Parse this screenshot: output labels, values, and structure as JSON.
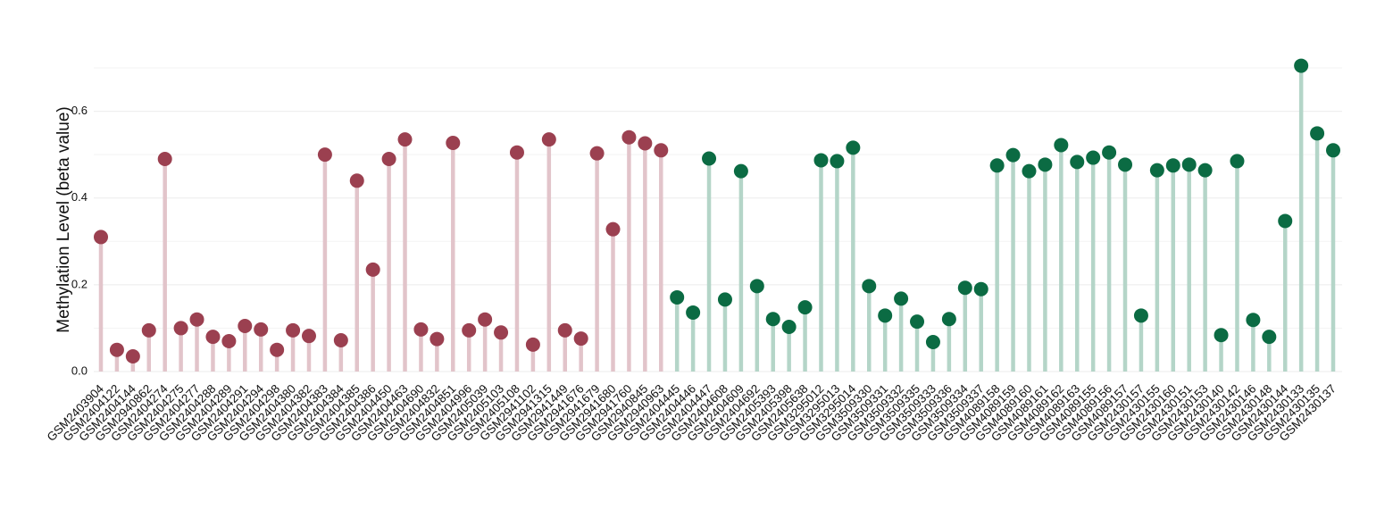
{
  "chart_data": {
    "type": "lollipop",
    "y_label": "Methylation Level (beta value)",
    "ylim": [
      0,
      0.7
    ],
    "yticks": [
      {
        "value": 0,
        "label": "0.0"
      },
      {
        "value": 0.2,
        "label": "0.2"
      },
      {
        "value": 0.4,
        "label": "0.4"
      },
      {
        "value": 0.6,
        "label": "0.6"
      }
    ],
    "minor_grid": [
      0.1,
      0.3,
      0.5,
      0.7
    ],
    "grid": true,
    "series": [
      {
        "color": "#9b4050",
        "stem_color": "#e2c4ca",
        "categories": [
          "GSM2403904",
          "GSM2404122",
          "GSM2404144",
          "GSM2940862",
          "GSM2404274",
          "GSM2404275",
          "GSM2404277",
          "GSM2404288",
          "GSM2404289",
          "GSM2404291",
          "GSM2404294",
          "GSM2404298",
          "GSM2404380",
          "GSM2404382",
          "GSM2404383",
          "GSM2404384",
          "GSM2404385",
          "GSM2404386",
          "GSM2404450",
          "GSM2404463",
          "GSM2404690",
          "GSM2404832",
          "GSM2404851",
          "GSM2404996",
          "GSM2405039",
          "GSM2405103",
          "GSM2405108",
          "GSM2941102",
          "GSM2941315",
          "GSM2941449",
          "GSM2941676",
          "GSM2941679",
          "GSM2941680",
          "GSM2941760",
          "GSM2940845",
          "GSM2940963"
        ],
        "values": [
          0.31,
          0.05,
          0.035,
          0.095,
          0.49,
          0.1,
          0.12,
          0.08,
          0.07,
          0.105,
          0.097,
          0.05,
          0.095,
          0.082,
          0.5,
          0.072,
          0.44,
          0.235,
          0.49,
          0.535,
          0.097,
          0.075,
          0.527,
          0.095,
          0.12,
          0.09,
          0.505,
          0.062,
          0.535,
          0.095,
          0.076,
          0.503,
          0.328,
          0.54,
          0.526,
          0.51
        ]
      },
      {
        "color": "#0b6b43",
        "stem_color": "#b4d5c8",
        "categories": [
          "GSM2404445",
          "GSM2404446",
          "GSM2404447",
          "GSM2404608",
          "GSM2404609",
          "GSM2404692",
          "GSM2405393",
          "GSM2405398",
          "GSM2405638",
          "GSM3295012",
          "GSM3295013",
          "GSM3295014",
          "GSM3509330",
          "GSM3509331",
          "GSM3509332",
          "GSM3509335",
          "GSM3509333",
          "GSM3509336",
          "GSM3509334",
          "GSM3509337",
          "GSM4089158",
          "GSM4089159",
          "GSM4089160",
          "GSM4089161",
          "GSM4089162",
          "GSM4089163",
          "GSM4089155",
          "GSM4089156",
          "GSM4089157",
          "GSM2430157",
          "GSM2430155",
          "GSM2430160",
          "GSM2430151",
          "GSM2430153",
          "GSM2430140",
          "GSM2430142",
          "GSM2430146",
          "GSM2430148",
          "GSM2430144",
          "GSM2430133",
          "GSM2430135",
          "GSM2430137"
        ],
        "values": [
          0.171,
          0.136,
          0.491,
          0.166,
          0.462,
          0.197,
          0.121,
          0.103,
          0.148,
          0.487,
          0.485,
          0.516,
          0.197,
          0.129,
          0.168,
          0.115,
          0.068,
          0.121,
          0.193,
          0.19,
          0.475,
          0.499,
          0.462,
          0.477,
          0.522,
          0.483,
          0.493,
          0.505,
          0.477,
          0.129,
          0.464,
          0.475,
          0.477,
          0.464,
          0.084,
          0.485,
          0.119,
          0.08,
          0.347,
          0.705,
          0.549,
          0.51
        ]
      }
    ]
  }
}
